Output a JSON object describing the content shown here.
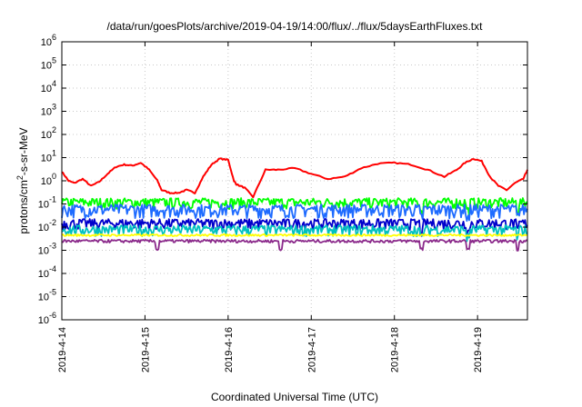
{
  "chart_data": {
    "type": "line",
    "title": "/data/run/goesPlots/archive/2019-04-19/14:00/flux/../flux/5daysEarthFluxes.txt",
    "xlabel": "Coordinated Universal Time (UTC)",
    "ylabel": "protons/cm2-s-sr-MeV",
    "yscale": "log",
    "ylim": [
      1e-06,
      1000000.0
    ],
    "xlim": [
      0,
      5.6
    ],
    "grid": true,
    "legend": "none",
    "y_tick_labels": [
      {
        "base": "10",
        "exp": "-6"
      },
      {
        "base": "10",
        "exp": "-5"
      },
      {
        "base": "10",
        "exp": "-4"
      },
      {
        "base": "10",
        "exp": "-3"
      },
      {
        "base": "10",
        "exp": "-2"
      },
      {
        "base": "10",
        "exp": "-1"
      },
      {
        "base": "10",
        "exp": "0"
      },
      {
        "base": "10",
        "exp": "1"
      },
      {
        "base": "10",
        "exp": "2"
      },
      {
        "base": "10",
        "exp": "3"
      },
      {
        "base": "10",
        "exp": "4"
      },
      {
        "base": "10",
        "exp": "5"
      },
      {
        "base": "10",
        "exp": "6"
      }
    ],
    "x_tick_labels": [
      "2019-4-14",
      "2019-4-15",
      "2019-4-16",
      "2019-4-17",
      "2019-4-18",
      "2019-4-19"
    ],
    "x_tick_values": [
      0,
      1,
      2,
      3,
      4,
      5
    ],
    "series": [
      {
        "color": "#ff0000",
        "x": [
          0,
          0.08,
          0.15,
          0.25,
          0.35,
          0.45,
          0.55,
          0.65,
          0.75,
          0.85,
          0.95,
          1.05,
          1.15,
          1.2,
          1.3,
          1.4,
          1.5,
          1.6,
          1.7,
          1.8,
          1.9,
          2.0,
          2.07,
          2.1,
          2.2,
          2.3,
          2.45,
          2.6,
          2.8,
          3.0,
          3.2,
          3.4,
          3.6,
          3.8,
          4.0,
          4.2,
          4.4,
          4.6,
          4.75,
          4.85,
          4.95,
          5.05,
          5.15,
          5.25,
          5.35,
          5.45,
          5.55,
          5.6
        ],
        "y": [
          2.5,
          1.0,
          0.8,
          1.2,
          0.6,
          0.9,
          2.0,
          4.0,
          5.0,
          4.5,
          6.0,
          3.0,
          1.0,
          0.4,
          0.3,
          0.3,
          0.4,
          0.3,
          1.5,
          5.0,
          9.0,
          8.0,
          1.0,
          0.7,
          0.5,
          0.2,
          3.0,
          3.0,
          3.5,
          2.0,
          1.2,
          1.5,
          3.5,
          5.5,
          6.0,
          5.0,
          3.0,
          1.5,
          3.0,
          6.0,
          9.0,
          7.0,
          1.5,
          0.6,
          0.4,
          0.8,
          1.2,
          3.0
        ]
      },
      {
        "color": "#00ff00",
        "base": 0.12,
        "spread": 0.5,
        "dips": [
          4.33,
          4.88,
          5.48
        ]
      },
      {
        "color": "#1e6bff",
        "base": 0.06,
        "spread": 0.6,
        "dips": [
          4.33,
          4.88,
          5.48
        ]
      },
      {
        "color": "#0000cc",
        "base": 0.015,
        "spread": 0.5,
        "dips": [
          4.33,
          4.88,
          5.48
        ]
      },
      {
        "color": "#00c0c0",
        "base": 0.008,
        "spread": 0.5,
        "dips": [
          4.33,
          4.88,
          5.48
        ]
      },
      {
        "color": "#ffff00",
        "base": 0.0045,
        "spread": 0.1,
        "dips": []
      },
      {
        "color": "#8b2a8b",
        "base": 0.0025,
        "spread": 0.15,
        "dips": [
          1.15,
          2.63,
          4.33,
          4.88,
          5.48
        ]
      }
    ]
  }
}
